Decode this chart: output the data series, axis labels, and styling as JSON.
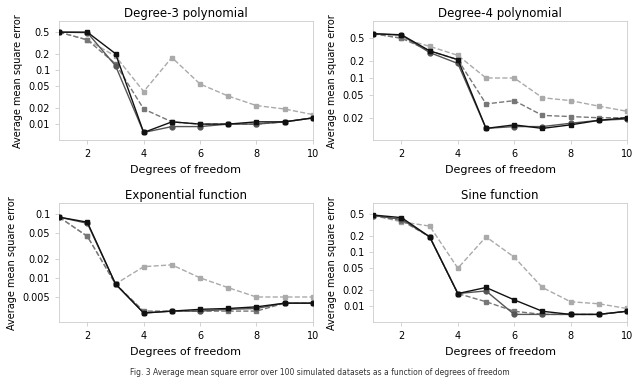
{
  "titles": [
    "Degree-3 polynomial",
    "Degree-4 polynomial",
    "Exponential function",
    "Sine function"
  ],
  "xlabel": "Degrees of freedom",
  "ylabel": "Average mean square error",
  "x": [
    1,
    2,
    3,
    4,
    5,
    6,
    7,
    8,
    9,
    10
  ],
  "plots": [
    {
      "lines": [
        {
          "y": [
            0.5,
            0.5,
            0.2,
            0.007,
            0.011,
            0.01,
            0.01,
            0.011,
            0.011,
            0.013
          ],
          "color": "#111111",
          "linestyle": "-",
          "marker": "s",
          "zorder": 5
        },
        {
          "y": [
            0.5,
            0.49,
            0.12,
            0.007,
            0.009,
            0.009,
            0.01,
            0.01,
            0.011,
            0.013
          ],
          "color": "#555555",
          "linestyle": "-",
          "marker": "o",
          "zorder": 4
        },
        {
          "y": [
            0.5,
            0.36,
            0.13,
            0.019,
            0.011,
            0.01,
            0.01,
            0.01,
            0.011,
            0.013
          ],
          "color": "#777777",
          "linestyle": "--",
          "marker": "s",
          "zorder": 3
        },
        {
          "y": [
            0.5,
            0.36,
            0.18,
            0.04,
            0.17,
            0.055,
            0.033,
            0.022,
            0.019,
            0.015
          ],
          "color": "#aaaaaa",
          "linestyle": "--",
          "marker": "s",
          "zorder": 2
        }
      ],
      "ylim": [
        0.005,
        0.8
      ],
      "yticks": [
        0.01,
        0.02,
        0.05,
        0.1,
        0.2,
        0.5
      ]
    },
    {
      "lines": [
        {
          "y": [
            0.6,
            0.575,
            0.3,
            0.21,
            0.013,
            0.015,
            0.013,
            0.015,
            0.018,
            0.02
          ],
          "color": "#111111",
          "linestyle": "-",
          "marker": "s",
          "zorder": 5
        },
        {
          "y": [
            0.6,
            0.565,
            0.28,
            0.18,
            0.013,
            0.014,
            0.014,
            0.016,
            0.018,
            0.019
          ],
          "color": "#555555",
          "linestyle": "-",
          "marker": "o",
          "zorder": 4
        },
        {
          "y": [
            0.6,
            0.5,
            0.3,
            0.21,
            0.035,
            0.04,
            0.022,
            0.021,
            0.02,
            0.02
          ],
          "color": "#777777",
          "linestyle": "--",
          "marker": "s",
          "zorder": 3
        },
        {
          "y": [
            0.6,
            0.5,
            0.36,
            0.25,
            0.1,
            0.1,
            0.045,
            0.04,
            0.032,
            0.026
          ],
          "color": "#aaaaaa",
          "linestyle": "--",
          "marker": "s",
          "zorder": 2
        }
      ],
      "ylim": [
        0.008,
        1.0
      ],
      "yticks": [
        0.02,
        0.05,
        0.1,
        0.2,
        0.5
      ]
    },
    {
      "lines": [
        {
          "y": [
            0.09,
            0.075,
            0.008,
            0.0028,
            0.003,
            0.0032,
            0.0033,
            0.0035,
            0.004,
            0.004
          ],
          "color": "#111111",
          "linestyle": "-",
          "marker": "s",
          "zorder": 5
        },
        {
          "y": [
            0.09,
            0.072,
            0.008,
            0.0028,
            0.003,
            0.003,
            0.0032,
            0.0033,
            0.004,
            0.004
          ],
          "color": "#555555",
          "linestyle": "-",
          "marker": "o",
          "zorder": 4
        },
        {
          "y": [
            0.09,
            0.045,
            0.008,
            0.003,
            0.003,
            0.003,
            0.003,
            0.003,
            0.004,
            0.004
          ],
          "color": "#777777",
          "linestyle": "--",
          "marker": "s",
          "zorder": 3
        },
        {
          "y": [
            0.09,
            0.045,
            0.008,
            0.015,
            0.016,
            0.01,
            0.007,
            0.005,
            0.005,
            0.005
          ],
          "color": "#aaaaaa",
          "linestyle": "--",
          "marker": "s",
          "zorder": 2
        }
      ],
      "ylim": [
        0.002,
        0.15
      ],
      "yticks": [
        0.005,
        0.01,
        0.02,
        0.05,
        0.1
      ]
    },
    {
      "lines": [
        {
          "y": [
            0.48,
            0.43,
            0.19,
            0.017,
            0.022,
            0.013,
            0.008,
            0.007,
            0.007,
            0.008
          ],
          "color": "#111111",
          "linestyle": "-",
          "marker": "s",
          "zorder": 5
        },
        {
          "y": [
            0.47,
            0.4,
            0.19,
            0.017,
            0.019,
            0.007,
            0.007,
            0.007,
            0.007,
            0.008
          ],
          "color": "#555555",
          "linestyle": "-",
          "marker": "o",
          "zorder": 4
        },
        {
          "y": [
            0.47,
            0.38,
            0.19,
            0.017,
            0.012,
            0.008,
            0.007,
            0.007,
            0.007,
            0.008
          ],
          "color": "#777777",
          "linestyle": "--",
          "marker": "s",
          "zorder": 3
        },
        {
          "y": [
            0.47,
            0.36,
            0.3,
            0.05,
            0.19,
            0.08,
            0.022,
            0.012,
            0.011,
            0.009
          ],
          "color": "#aaaaaa",
          "linestyle": "--",
          "marker": "s",
          "zorder": 2
        }
      ],
      "ylim": [
        0.005,
        0.8
      ],
      "yticks": [
        0.01,
        0.02,
        0.05,
        0.1,
        0.2,
        0.5
      ]
    }
  ],
  "caption": "Fig. 3 Average mean square error over 100 simulated datasets as a function of degrees of freedom",
  "background_color": "#ffffff",
  "markersize": 3.5,
  "linewidth": 1.0
}
